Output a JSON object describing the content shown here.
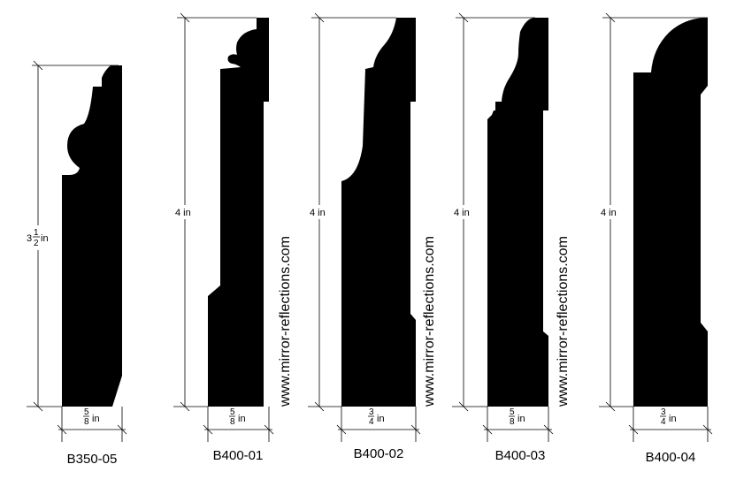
{
  "profiles": [
    {
      "code": "B350-05",
      "height_whole": "3",
      "height_num": "1",
      "height_den": "2",
      "height_unit": "in",
      "width_num": "5",
      "width_den": "8",
      "width_unit": "in"
    },
    {
      "code": "B400-01",
      "height_label": "4 in",
      "width_num": "5",
      "width_den": "8",
      "width_unit": "in"
    },
    {
      "code": "B400-02",
      "height_label": "4 in",
      "width_num": "3",
      "width_den": "4",
      "width_unit": "in"
    },
    {
      "code": "B400-03",
      "height_label": "4 in",
      "width_num": "5",
      "width_den": "8",
      "width_unit": "in"
    },
    {
      "code": "B400-04",
      "height_label": "4 in",
      "width_num": "3",
      "width_den": "4",
      "width_unit": "in"
    }
  ],
  "watermarks": [
    "www.mirror-reflections.com",
    "www.mirror-reflections.com",
    "www.mirror-reflections.com"
  ]
}
